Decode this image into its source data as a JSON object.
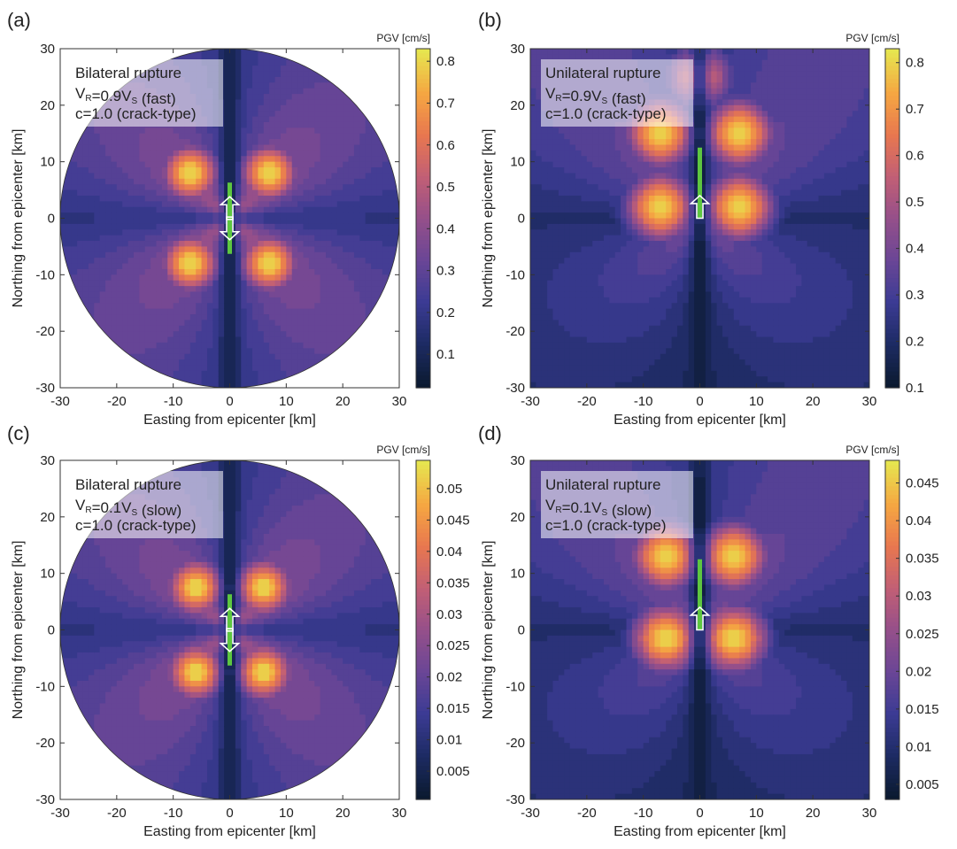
{
  "chart_data": [
    {
      "type": "heatmap",
      "panel_label": "(a)",
      "annotation": {
        "line1": "Bilateral rupture",
        "line2_prefix": "V",
        "line2_sub1": "R",
        "line2_mid": "=0.9V",
        "line2_sub2": "S",
        "line2_suffix": " (fast)",
        "line3": "c=1.0 (crack-type)"
      },
      "rupture": "bilateral",
      "domain_shape": "circle",
      "xlabel": "Easting from epicenter [km]",
      "ylabel": "Northing from epicenter [km]",
      "xlim": [
        -30,
        30
      ],
      "ylim": [
        -30,
        30
      ],
      "xticks": [
        "-30",
        "-20",
        "-10",
        "0",
        "10",
        "20",
        "30"
      ],
      "yticks": [
        "-30",
        "-20",
        "-10",
        "0",
        "10",
        "20",
        "30"
      ],
      "colorbar_title": "PGV [cm/s]",
      "colorbar_range": [
        0.02,
        0.83
      ],
      "colorbar_ticks": [
        "0.1",
        "0.2",
        "0.3",
        "0.4",
        "0.5",
        "0.6",
        "0.7",
        "0.8"
      ],
      "colorbar_tick_values": [
        0.1,
        0.2,
        0.3,
        0.4,
        0.5,
        0.6,
        0.7,
        0.8
      ],
      "peaks_km": [
        [
          -7,
          8
        ],
        [
          7,
          8
        ],
        [
          -7,
          -8
        ],
        [
          7,
          -8
        ]
      ],
      "peak_value": 0.82
    },
    {
      "type": "heatmap",
      "panel_label": "(b)",
      "annotation": {
        "line1": "Unilateral rupture",
        "line2_prefix": "V",
        "line2_sub1": "R",
        "line2_mid": "=0.9V",
        "line2_sub2": "S",
        "line2_suffix": " (fast)",
        "line3": "c=1.0 (crack-type)"
      },
      "rupture": "unilateral",
      "domain_shape": "square",
      "xlabel": "Easting from epicenter [km]",
      "ylabel": "Northing from epicenter [km]",
      "xlim": [
        -30,
        30
      ],
      "ylim": [
        -30,
        30
      ],
      "xticks": [
        "-30",
        "-20",
        "-10",
        "0",
        "10",
        "20",
        "30"
      ],
      "yticks": [
        "-30",
        "-20",
        "-10",
        "0",
        "10",
        "20",
        "30"
      ],
      "colorbar_title": "PGV [cm/s]",
      "colorbar_range": [
        0.1,
        0.83
      ],
      "colorbar_ticks": [
        "0.1",
        "0.2",
        "0.3",
        "0.4",
        "0.5",
        "0.6",
        "0.7",
        "0.8"
      ],
      "colorbar_tick_values": [
        0.1,
        0.2,
        0.3,
        0.4,
        0.5,
        0.6,
        0.7,
        0.8
      ],
      "peaks_km": [
        [
          -7,
          15
        ],
        [
          7,
          15
        ],
        [
          -7,
          2
        ],
        [
          7,
          2
        ],
        [
          0,
          25
        ]
      ],
      "peak_value": 0.82
    },
    {
      "type": "heatmap",
      "panel_label": "(c)",
      "annotation": {
        "line1": "Bilateral rupture",
        "line2_prefix": "V",
        "line2_sub1": "R",
        "line2_mid": "=0.1V",
        "line2_sub2": "S",
        "line2_suffix": " (slow)",
        "line3": "c=1.0 (crack-type)"
      },
      "rupture": "bilateral",
      "domain_shape": "circle",
      "xlabel": "Easting from epicenter [km]",
      "ylabel": "Northing from epicenter [km]",
      "xlim": [
        -30,
        30
      ],
      "ylim": [
        -30,
        30
      ],
      "xticks": [
        "-30",
        "-20",
        "-10",
        "0",
        "10",
        "20",
        "30"
      ],
      "yticks": [
        "-30",
        "-20",
        "-10",
        "0",
        "10",
        "20",
        "30"
      ],
      "colorbar_title": "PGV [cm/s]",
      "colorbar_range": [
        0.0005,
        0.0545
      ],
      "colorbar_ticks": [
        "0.005",
        "0.01",
        "0.015",
        "0.02",
        "0.025",
        "0.03",
        "0.035",
        "0.04",
        "0.045",
        "0.05"
      ],
      "colorbar_tick_values": [
        0.005,
        0.01,
        0.015,
        0.02,
        0.025,
        0.03,
        0.035,
        0.04,
        0.045,
        0.05
      ],
      "peaks_km": [
        [
          -6,
          7.5
        ],
        [
          6,
          7.5
        ],
        [
          -6,
          -7.5
        ],
        [
          6,
          -7.5
        ]
      ],
      "peak_value": 0.053
    },
    {
      "type": "heatmap",
      "panel_label": "(d)",
      "annotation": {
        "line1": "Unilateral rupture",
        "line2_prefix": "V",
        "line2_sub1": "R",
        "line2_mid": "=0.1V",
        "line2_sub2": "S",
        "line2_suffix": " (slow)",
        "line3": "c=1.0 (crack-type)"
      },
      "rupture": "unilateral",
      "domain_shape": "square",
      "xlabel": "Easting from epicenter [km]",
      "ylabel": "Northing from epicenter [km]",
      "xlim": [
        -30,
        30
      ],
      "ylim": [
        -30,
        30
      ],
      "xticks": [
        "-30",
        "-20",
        "-10",
        "0",
        "10",
        "20",
        "30"
      ],
      "yticks": [
        "-30",
        "-20",
        "-10",
        "0",
        "10",
        "20",
        "30"
      ],
      "colorbar_title": "PGV [cm/s]",
      "colorbar_range": [
        0.003,
        0.048
      ],
      "colorbar_ticks": [
        "0.005",
        "0.01",
        "0.015",
        "0.02",
        "0.025",
        "0.03",
        "0.035",
        "0.04",
        "0.045"
      ],
      "colorbar_tick_values": [
        0.005,
        0.01,
        0.015,
        0.02,
        0.025,
        0.03,
        0.035,
        0.04,
        0.045
      ],
      "peaks_km": [
        [
          -6,
          13
        ],
        [
          6,
          13
        ],
        [
          -6,
          -1.5
        ],
        [
          6,
          -1.5
        ]
      ],
      "peak_value": 0.046
    }
  ],
  "colors": {
    "fault_line": "#5ec640",
    "colormap": [
      "#0b1a30",
      "#1d2b63",
      "#3b3b94",
      "#6a4696",
      "#954f8a",
      "#c25f75",
      "#e8774f",
      "#f5a742",
      "#e6e54f"
    ]
  }
}
